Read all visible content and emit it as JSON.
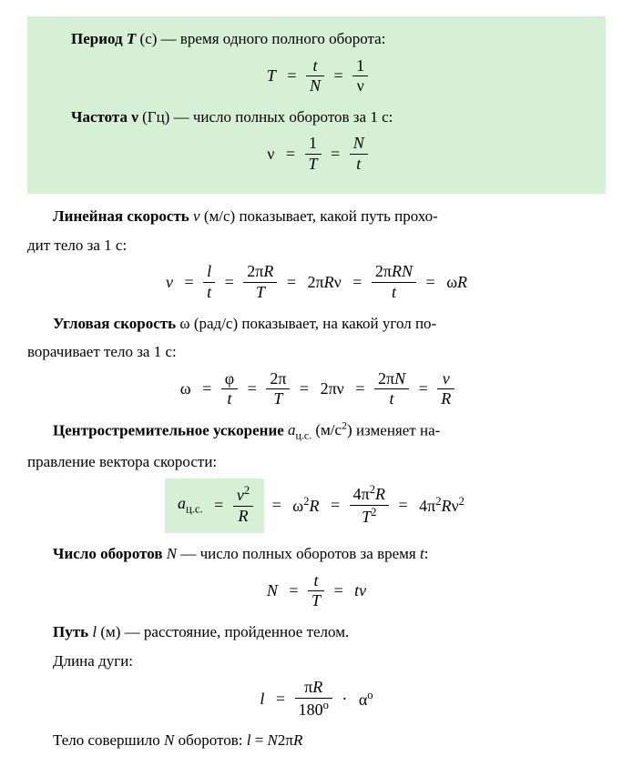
{
  "box1": {
    "line1_term": "Период",
    "line1_sym": "T",
    "line1_unit": "(с)",
    "line1_rest": " — время одного полного оборота:",
    "formula1_lhs": "T",
    "formula1_f1_num": "t",
    "formula1_f1_den": "N",
    "formula1_f2_num": "1",
    "formula1_f2_den": "ν",
    "line2_term": "Частота",
    "line2_sym": "ν",
    "line2_unit": "(Гц)",
    "line2_rest": " — число полных оборотов за 1 с:",
    "formula2_lhs": "ν",
    "formula2_f1_num": "1",
    "formula2_f1_den": "T",
    "formula2_f2_num": "N",
    "formula2_f2_den": "t"
  },
  "sec_linear": {
    "term": "Линейная скорость",
    "sym": "v",
    "unit": "(м/с)",
    "rest1": " показывает, какой путь прохо-",
    "rest2": "дит тело за 1 с:",
    "f_lhs": "v",
    "f1_num": "l",
    "f1_den": "t",
    "f2_num": "2πR",
    "f2_den": "T",
    "t3": "2πRν",
    "f4_num": "2πRN",
    "f4_den": "t",
    "t5": "ωR"
  },
  "sec_angular": {
    "term": "Угловая скорость",
    "sym": "ω",
    "unit": "(рад/с)",
    "rest1": " показывает, на какой угол по-",
    "rest2": "ворачивает тело за 1 с:",
    "f_lhs": "ω",
    "f1_num": "φ",
    "f1_den": "t",
    "f2_num": "2π",
    "f2_den": "T",
    "t3": "2πν",
    "f4_num": "2πN",
    "f4_den": "t",
    "f5_num": "v",
    "f5_den": "R"
  },
  "sec_centripetal": {
    "term": "Центростремительное ускорение",
    "sym_base": "a",
    "sym_sub": "ц.с.",
    "unit_pre": "(м/с",
    "unit_sup": "2",
    "unit_post": ")",
    "rest1": " изменяет на-",
    "rest2": "правление вектора скорости:",
    "f_lhs_base": "a",
    "f_lhs_sub": "ц.с.",
    "f1_num_base": "v",
    "f1_num_sup": "2",
    "f1_den": "R",
    "t2_pre": "ω",
    "t2_sup": "2",
    "t2_post": "R",
    "f3_num_pre": "4π",
    "f3_num_sup": "2",
    "f3_num_post": "R",
    "f3_den_base": "T",
    "f3_den_sup": "2",
    "t4_pre": "4π",
    "t4_sup": "2",
    "t4_mid": "Rν",
    "t4_sup2": "2"
  },
  "sec_revs": {
    "term": "Число оборотов",
    "sym": "N",
    "rest": " — число полных оборотов за время ",
    "rest_sym": "t",
    "rest_colon": ":",
    "f_lhs": "N",
    "f1_num": "t",
    "f1_den": "T",
    "t2": "tν"
  },
  "sec_path": {
    "term": "Путь",
    "sym": "l",
    "unit": "(м)",
    "rest": " — расстояние, пройденное телом."
  },
  "sec_arc": {
    "line": "Длина дуги:",
    "f_lhs": "l",
    "f1_num": "πR",
    "f1_den_num": "180",
    "f1_den_sup": "o",
    "t2_dot": " · ",
    "t2_base": "α",
    "t2_sup": "o"
  },
  "sec_final": {
    "pre": "Тело совершило ",
    "sym": "N",
    "mid": " оборотов:  ",
    "f_lhs": "l",
    "f_eq": " = ",
    "f_rhs_pre": "N",
    "f_rhs_2pi": "2π",
    "f_rhs_R": "R"
  }
}
